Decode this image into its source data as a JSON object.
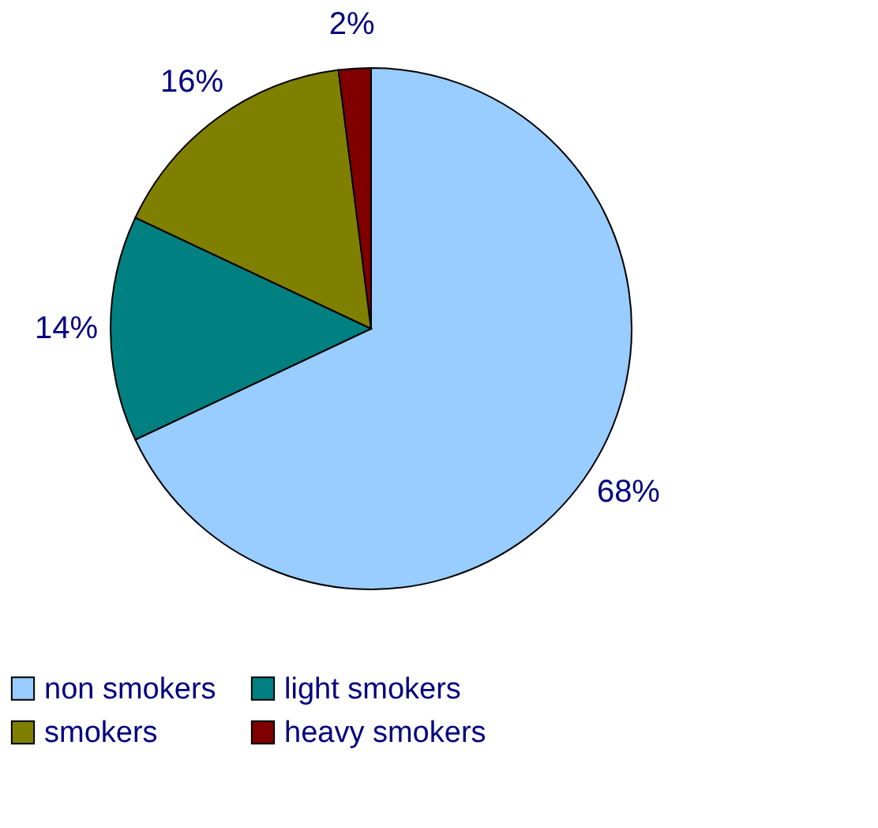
{
  "chart_data": {
    "type": "pie",
    "categories": [
      "non smokers",
      "light smokers",
      "smokers",
      "heavy smokers"
    ],
    "values": [
      68,
      14,
      16,
      2
    ],
    "colors": [
      "#99ccff",
      "#008080",
      "#808000",
      "#800000"
    ],
    "value_labels": [
      "68%",
      "14%",
      "16%",
      "2%"
    ],
    "legend": "bottom"
  }
}
